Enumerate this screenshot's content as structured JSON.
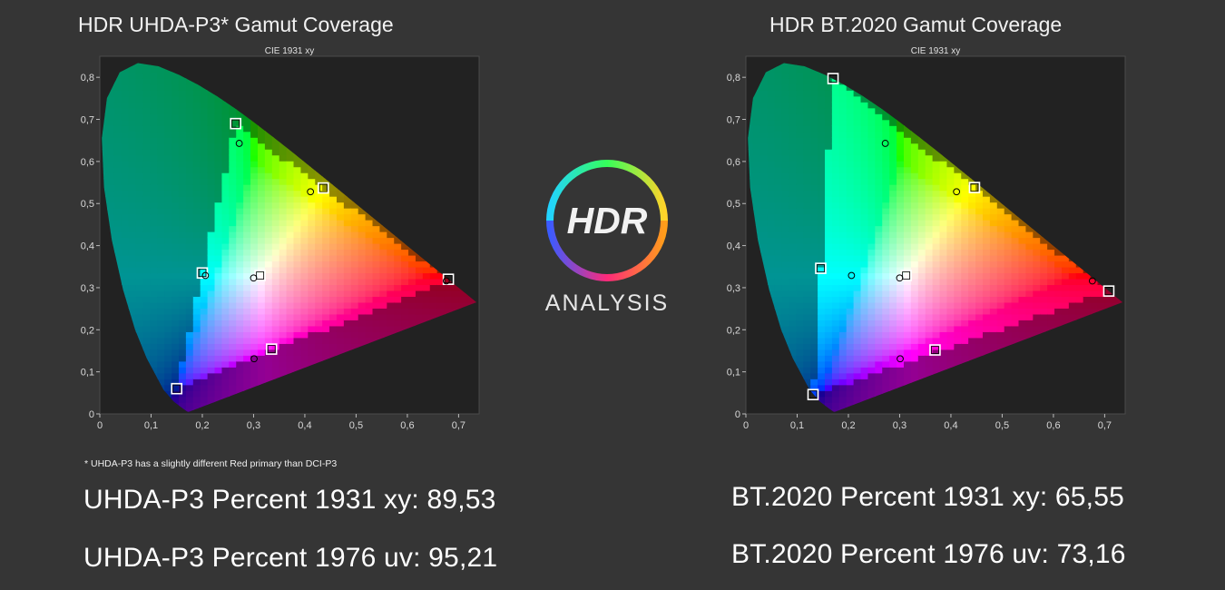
{
  "left_panel": {
    "title": "HDR UHDA-P3* Gamut Coverage",
    "footnote": "* UHDA-P3 has a slightly different Red primary than DCI-P3",
    "stat_1931": "UHDA-P3 Percent 1931 xy: 89,53",
    "stat_1976": "UHDA-P3 Percent 1976 uv: 95,21"
  },
  "right_panel": {
    "title": "HDR BT.2020  Gamut Coverage",
    "stat_1931": "BT.2020 Percent 1931 xy: 65,55",
    "stat_1976": "BT.2020 Percent 1976 uv: 73,16"
  },
  "logo": {
    "badge_text": "HDR",
    "caption": "ANALYSIS",
    "icon": "hdr-analysis-ring-icon"
  },
  "colors": {
    "background": "#353535",
    "plot_bg": "#222222",
    "text": "#ffffff"
  },
  "chart_data": [
    {
      "type": "scatter",
      "title": "CIE 1931 xy",
      "xlabel": "",
      "ylabel": "",
      "xlim": [
        0,
        0.74
      ],
      "ylim": [
        0,
        0.85
      ],
      "xticks": [
        "0",
        "0,1",
        "0,2",
        "0,3",
        "0,4",
        "0,5",
        "0,6",
        "0,7"
      ],
      "yticks": [
        "0",
        "0,1",
        "0,2",
        "0,3",
        "0,4",
        "0,5",
        "0,6",
        "0,7",
        "0,8"
      ],
      "spectral_locus": [
        [
          0.1741,
          0.005
        ],
        [
          0.1726,
          0.0048
        ],
        [
          0.1714,
          0.0051
        ],
        [
          0.1689,
          0.0069
        ],
        [
          0.1644,
          0.0109
        ],
        [
          0.1566,
          0.0177
        ],
        [
          0.144,
          0.0297
        ],
        [
          0.1241,
          0.0578
        ],
        [
          0.0913,
          0.1327
        ],
        [
          0.0687,
          0.2007
        ],
        [
          0.0454,
          0.295
        ],
        [
          0.0235,
          0.4127
        ],
        [
          0.0082,
          0.5384
        ],
        [
          0.0039,
          0.6548
        ],
        [
          0.0139,
          0.7502
        ],
        [
          0.0389,
          0.812
        ],
        [
          0.0743,
          0.8338
        ],
        [
          0.1142,
          0.8262
        ],
        [
          0.1547,
          0.8059
        ],
        [
          0.1929,
          0.7816
        ],
        [
          0.2296,
          0.7543
        ],
        [
          0.2658,
          0.7243
        ],
        [
          0.3016,
          0.6923
        ],
        [
          0.3373,
          0.6589
        ],
        [
          0.3731,
          0.6245
        ],
        [
          0.4087,
          0.5896
        ],
        [
          0.4441,
          0.5547
        ],
        [
          0.4788,
          0.5202
        ],
        [
          0.5125,
          0.4866
        ],
        [
          0.5448,
          0.4544
        ],
        [
          0.5752,
          0.4242
        ],
        [
          0.6029,
          0.3965
        ],
        [
          0.627,
          0.3725
        ],
        [
          0.6482,
          0.3514
        ],
        [
          0.6658,
          0.334
        ],
        [
          0.6801,
          0.3197
        ],
        [
          0.6915,
          0.3083
        ],
        [
          0.7006,
          0.2993
        ],
        [
          0.714,
          0.286
        ],
        [
          0.7347,
          0.2653
        ]
      ],
      "target_gamut": [
        [
          0.68,
          0.32
        ],
        [
          0.265,
          0.69
        ],
        [
          0.15,
          0.06
        ]
      ],
      "target_points": [
        [
          0.68,
          0.32
        ],
        [
          0.265,
          0.69
        ],
        [
          0.15,
          0.06
        ],
        [
          0.3127,
          0.329
        ],
        [
          0.436,
          0.537
        ],
        [
          0.2,
          0.335
        ],
        [
          0.335,
          0.154
        ]
      ],
      "measured_points": [
        [
          0.676,
          0.316
        ],
        [
          0.272,
          0.643
        ],
        [
          0.411,
          0.528
        ],
        [
          0.206,
          0.329
        ],
        [
          0.3,
          0.323
        ],
        [
          0.301,
          0.131
        ]
      ]
    },
    {
      "type": "scatter",
      "title": "CIE 1931 xy",
      "xlabel": "",
      "ylabel": "",
      "xlim": [
        0,
        0.74
      ],
      "ylim": [
        0,
        0.85
      ],
      "xticks": [
        "0",
        "0,1",
        "0,2",
        "0,3",
        "0,4",
        "0,5",
        "0,6",
        "0,7"
      ],
      "yticks": [
        "0",
        "0,1",
        "0,2",
        "0,3",
        "0,4",
        "0,5",
        "0,6",
        "0,7",
        "0,8"
      ],
      "spectral_locus": [
        [
          0.1741,
          0.005
        ],
        [
          0.1726,
          0.0048
        ],
        [
          0.1714,
          0.0051
        ],
        [
          0.1689,
          0.0069
        ],
        [
          0.1644,
          0.0109
        ],
        [
          0.1566,
          0.0177
        ],
        [
          0.144,
          0.0297
        ],
        [
          0.1241,
          0.0578
        ],
        [
          0.0913,
          0.1327
        ],
        [
          0.0687,
          0.2007
        ],
        [
          0.0454,
          0.295
        ],
        [
          0.0235,
          0.4127
        ],
        [
          0.0082,
          0.5384
        ],
        [
          0.0039,
          0.6548
        ],
        [
          0.0139,
          0.7502
        ],
        [
          0.0389,
          0.812
        ],
        [
          0.0743,
          0.8338
        ],
        [
          0.1142,
          0.8262
        ],
        [
          0.1547,
          0.8059
        ],
        [
          0.1929,
          0.7816
        ],
        [
          0.2296,
          0.7543
        ],
        [
          0.2658,
          0.7243
        ],
        [
          0.3016,
          0.6923
        ],
        [
          0.3373,
          0.6589
        ],
        [
          0.3731,
          0.6245
        ],
        [
          0.4087,
          0.5896
        ],
        [
          0.4441,
          0.5547
        ],
        [
          0.4788,
          0.5202
        ],
        [
          0.5125,
          0.4866
        ],
        [
          0.5448,
          0.4544
        ],
        [
          0.5752,
          0.4242
        ],
        [
          0.6029,
          0.3965
        ],
        [
          0.627,
          0.3725
        ],
        [
          0.6482,
          0.3514
        ],
        [
          0.6658,
          0.334
        ],
        [
          0.6801,
          0.3197
        ],
        [
          0.6915,
          0.3083
        ],
        [
          0.7006,
          0.2993
        ],
        [
          0.714,
          0.286
        ],
        [
          0.7347,
          0.2653
        ]
      ],
      "target_gamut": [
        [
          0.708,
          0.292
        ],
        [
          0.17,
          0.797
        ],
        [
          0.131,
          0.046
        ]
      ],
      "target_points": [
        [
          0.708,
          0.292
        ],
        [
          0.17,
          0.797
        ],
        [
          0.131,
          0.046
        ],
        [
          0.3127,
          0.329
        ],
        [
          0.446,
          0.538
        ],
        [
          0.146,
          0.346
        ],
        [
          0.369,
          0.152
        ]
      ],
      "measured_points": [
        [
          0.676,
          0.316
        ],
        [
          0.272,
          0.643
        ],
        [
          0.411,
          0.528
        ],
        [
          0.206,
          0.329
        ],
        [
          0.3,
          0.323
        ],
        [
          0.301,
          0.131
        ]
      ]
    }
  ]
}
